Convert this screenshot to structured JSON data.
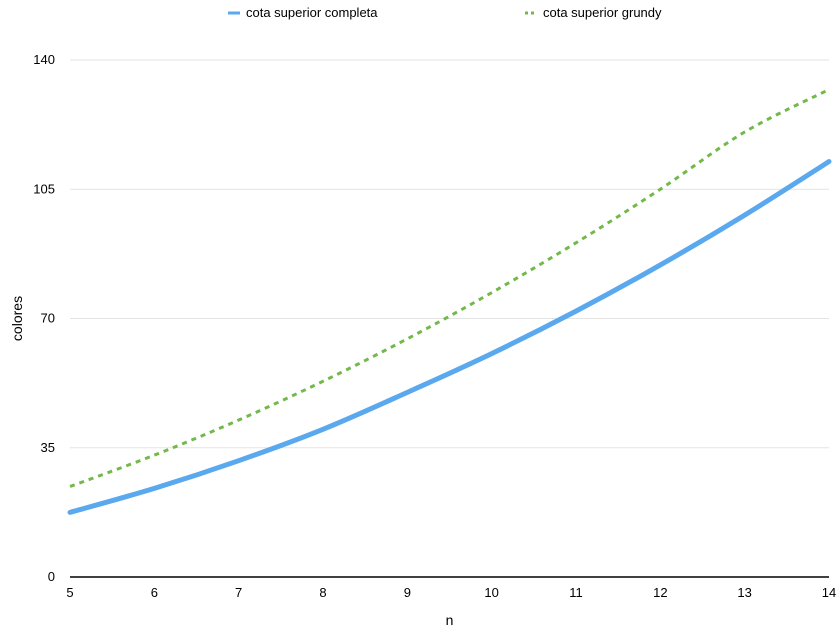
{
  "chart_data": {
    "type": "line",
    "title": "",
    "xlabel": "n",
    "ylabel": "colores",
    "x": [
      5,
      6,
      7,
      8,
      9,
      10,
      11,
      12,
      13,
      14
    ],
    "xlim": [
      5,
      14
    ],
    "ylim": [
      0,
      140
    ],
    "yticks": [
      0,
      35,
      70,
      105,
      140
    ],
    "grid": true,
    "legend_position": "top",
    "series": [
      {
        "name": "cota superior completa",
        "color": "#5aa8ee",
        "line_style": "solid",
        "values": [
          17.5,
          24,
          31.5,
          40,
          50,
          60.5,
          72,
          84.5,
          98,
          112.5
        ]
      },
      {
        "name": "cota superior grundy",
        "color": "#72b94a",
        "line_style": "dashed",
        "values": [
          24.5,
          33,
          42.5,
          53,
          64.5,
          77,
          90.5,
          105,
          120.5,
          132
        ]
      }
    ]
  }
}
